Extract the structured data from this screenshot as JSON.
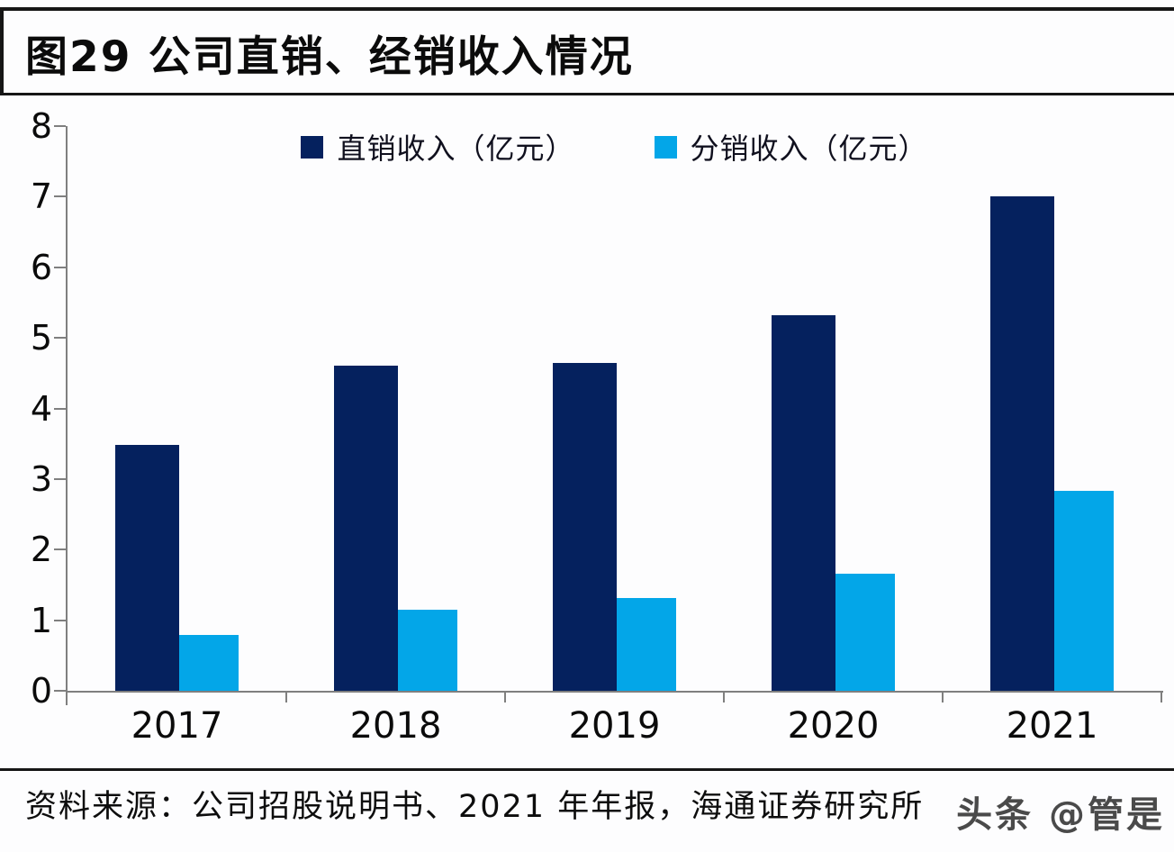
{
  "figure": {
    "title": "图29 公司直销、经销收入情况",
    "source": "资料来源：公司招股说明书、2021 年年报，海通证券研究所",
    "watermark": "头条 @管是"
  },
  "colors": {
    "direct_sales": "#05215e",
    "distribution_sales": "#03a6e8",
    "axis": "#7f7f7f",
    "rule": "#161616",
    "label_text": "#0b0b0b",
    "watermark_text": "#4a4a4a"
  },
  "chart_data": {
    "type": "bar",
    "title": "图29 公司直销、经销收入情况",
    "categories": [
      "2017",
      "2018",
      "2019",
      "2020",
      "2021"
    ],
    "series": [
      {
        "name": "直销收入（亿元）",
        "color": "#05215e",
        "values": [
          3.48,
          4.61,
          4.64,
          5.32,
          7.0
        ]
      },
      {
        "name": "分销收入（亿元）",
        "color": "#03a6e8",
        "values": [
          0.79,
          1.15,
          1.31,
          1.66,
          2.83
        ]
      }
    ],
    "xlabel": "",
    "ylabel": "",
    "ylim": [
      0,
      8
    ],
    "ytick_step": 1,
    "grid": false,
    "legend_position": "top-center"
  }
}
